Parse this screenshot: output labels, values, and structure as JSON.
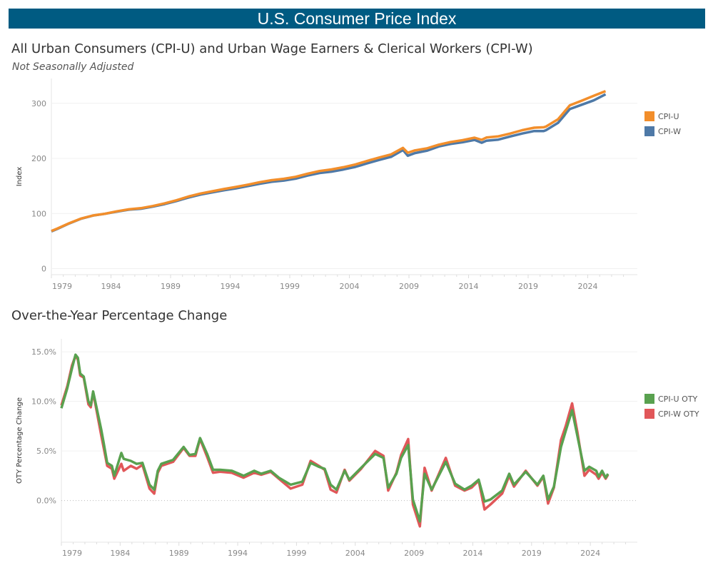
{
  "header": {
    "title": "U.S. Consumer Price Index"
  },
  "chart_data": [
    {
      "type": "line",
      "title": "All Urban Consumers (CPI-U) and Urban Wage Earners & Clerical Workers (CPI-W)",
      "subtitle": "Not Seasonally Adjusted",
      "ylabel": "Index",
      "ylim": [
        -11,
        345
      ],
      "yticks": [
        0,
        100,
        200,
        300
      ],
      "xlim": [
        1979,
        2028
      ],
      "xticks": [
        1979,
        1984,
        1989,
        1994,
        1999,
        2004,
        2009,
        2014,
        2019,
        2024
      ],
      "grid": true,
      "legend": "right",
      "x": [
        1979.0,
        1979.5,
        1980.5,
        1981.5,
        1982.5,
        1983.5,
        1984.5,
        1985.5,
        1986.5,
        1987.5,
        1988.5,
        1989.5,
        1990.5,
        1991.5,
        1992.5,
        1993.5,
        1994.5,
        1995.5,
        1996.5,
        1997.5,
        1998.5,
        1999.5,
        2000.5,
        2001.5,
        2002.5,
        2003.5,
        2004.5,
        2005.5,
        2006.5,
        2007.5,
        2008.5,
        2008.9,
        2009.5,
        2010.5,
        2011.5,
        2012.5,
        2013.5,
        2014.5,
        2015.1,
        2015.5,
        2016.5,
        2017.5,
        2018.5,
        2019.5,
        2020.3,
        2020.5,
        2021.5,
        2022.5,
        2023.5,
        2024.5,
        2025.5
      ],
      "series": [
        {
          "name": "CPI-U",
          "color": "#f28e2b",
          "values": [
            68.3,
            72.6,
            82.4,
            90.9,
            96.5,
            99.6,
            103.9,
            107.6,
            109.6,
            113.6,
            118.3,
            124.0,
            130.7,
            136.2,
            140.3,
            144.5,
            148.2,
            152.4,
            156.9,
            160.5,
            163.0,
            166.6,
            172.2,
            177.1,
            179.9,
            184.0,
            188.9,
            195.3,
            201.6,
            207.3,
            219.0,
            210.2,
            214.5,
            218.1,
            224.9,
            229.6,
            233.0,
            237.5,
            233.7,
            237.8,
            240.0,
            245.1,
            251.1,
            255.7,
            256.4,
            257.8,
            271.0,
            296.3,
            304.7,
            313.7,
            322.1
          ]
        },
        {
          "name": "CPI-W",
          "color": "#4e79a7",
          "values": [
            67.5,
            72.0,
            82.0,
            90.6,
            96.2,
            99.4,
            103.3,
            106.9,
            108.6,
            112.5,
            117.0,
            122.6,
            129.0,
            134.3,
            138.2,
            142.1,
            145.6,
            149.8,
            154.1,
            157.6,
            159.7,
            163.2,
            168.9,
            173.5,
            175.9,
            179.8,
            184.5,
            191.0,
            197.1,
            202.8,
            215.2,
            204.8,
            209.6,
            213.9,
            221.6,
            226.2,
            229.3,
            233.6,
            228.3,
            232.0,
            234.1,
            239.7,
            245.1,
            249.6,
            249.4,
            251.1,
            264.3,
            289.5,
            297.4,
            305.3,
            316.3
          ]
        }
      ]
    },
    {
      "type": "line",
      "title": "Over-the-Year Percentage Change",
      "ylabel": "OTY Percentage Change",
      "ylim": [
        -4.2,
        16.3
      ],
      "yticks": [
        0,
        5,
        10,
        15
      ],
      "ytick_labels": [
        "0.0%",
        "5.0%",
        "10.0%",
        "15.0%"
      ],
      "xlim": [
        1979,
        2028
      ],
      "xticks": [
        1979,
        1984,
        1989,
        1994,
        1999,
        2004,
        2009,
        2014,
        2019,
        2024
      ],
      "grid": true,
      "zero_line": "dotted",
      "legend": "right",
      "x": [
        1979.0,
        1979.5,
        1979.9,
        1980.2,
        1980.4,
        1980.6,
        1980.9,
        1981.3,
        1981.5,
        1981.7,
        1982.4,
        1982.6,
        1982.9,
        1983.3,
        1983.5,
        1984.1,
        1984.3,
        1984.9,
        1985.4,
        1985.9,
        1986.5,
        1986.9,
        1987.2,
        1987.5,
        1988.5,
        1989.4,
        1989.9,
        1990.4,
        1990.8,
        1991.4,
        1991.9,
        1992.5,
        1993.5,
        1994.5,
        1995.4,
        1996.0,
        1996.8,
        1997.5,
        1998.5,
        1999.5,
        2000.2,
        2000.9,
        2001.4,
        2001.9,
        2002.4,
        2003.1,
        2003.5,
        2004.5,
        2005.7,
        2006.4,
        2006.8,
        2007.5,
        2007.9,
        2008.5,
        2008.9,
        2009.5,
        2009.9,
        2010.5,
        2011.7,
        2012.5,
        2013.3,
        2013.9,
        2014.5,
        2015.0,
        2015.5,
        2016.5,
        2017.1,
        2017.5,
        2018.5,
        2019.5,
        2020.0,
        2020.4,
        2020.9,
        2021.5,
        2021.9,
        2022.45,
        2022.9,
        2023.5,
        2023.9,
        2024.5,
        2024.7,
        2025.0,
        2025.3,
        2025.5
      ],
      "series": [
        {
          "name": "CPI-U OTY",
          "color": "#59a14f",
          "values": [
            9.3,
            11.3,
            13.3,
            14.7,
            14.4,
            12.8,
            12.5,
            10.0,
            9.6,
            11.0,
            7.1,
            5.8,
            3.8,
            3.5,
            2.5,
            4.8,
            4.2,
            4.0,
            3.7,
            3.8,
            1.6,
            1.1,
            3.0,
            3.7,
            4.1,
            5.4,
            4.6,
            4.7,
            6.3,
            4.7,
            3.1,
            3.1,
            3.0,
            2.5,
            3.0,
            2.7,
            3.0,
            2.3,
            1.6,
            1.9,
            3.8,
            3.4,
            3.2,
            1.6,
            1.1,
            3.0,
            2.1,
            3.3,
            4.7,
            4.3,
            1.3,
            2.7,
            4.3,
            5.6,
            0.1,
            -2.1,
            2.7,
            1.1,
            3.9,
            1.7,
            1.1,
            1.5,
            2.1,
            -0.1,
            0.1,
            1.0,
            2.7,
            1.6,
            2.9,
            1.6,
            2.5,
            0.1,
            1.4,
            5.4,
            7.0,
            9.1,
            6.5,
            3.0,
            3.4,
            3.0,
            2.4,
            3.0,
            2.3,
            2.7
          ]
        },
        {
          "name": "CPI-W OTY",
          "color": "#e15759",
          "values": [
            9.6,
            11.5,
            13.6,
            14.6,
            14.2,
            12.6,
            12.4,
            9.7,
            9.4,
            10.9,
            6.5,
            5.3,
            3.5,
            3.2,
            2.2,
            3.7,
            3.0,
            3.5,
            3.2,
            3.6,
            1.2,
            0.7,
            2.8,
            3.5,
            3.9,
            5.3,
            4.5,
            4.5,
            6.2,
            4.4,
            2.8,
            2.9,
            2.8,
            2.3,
            2.8,
            2.6,
            2.9,
            2.2,
            1.2,
            1.6,
            4.0,
            3.5,
            3.1,
            1.1,
            0.8,
            3.1,
            2.0,
            3.2,
            5.0,
            4.5,
            1.0,
            2.8,
            4.6,
            6.2,
            -0.4,
            -2.6,
            3.3,
            1.0,
            4.3,
            1.5,
            1.0,
            1.3,
            2.0,
            -0.9,
            -0.4,
            0.7,
            2.5,
            1.4,
            3.0,
            1.5,
            2.4,
            -0.3,
            1.3,
            6.1,
            7.5,
            9.8,
            6.9,
            2.5,
            3.1,
            2.6,
            2.2,
            2.8,
            2.2,
            2.6
          ]
        }
      ]
    }
  ]
}
